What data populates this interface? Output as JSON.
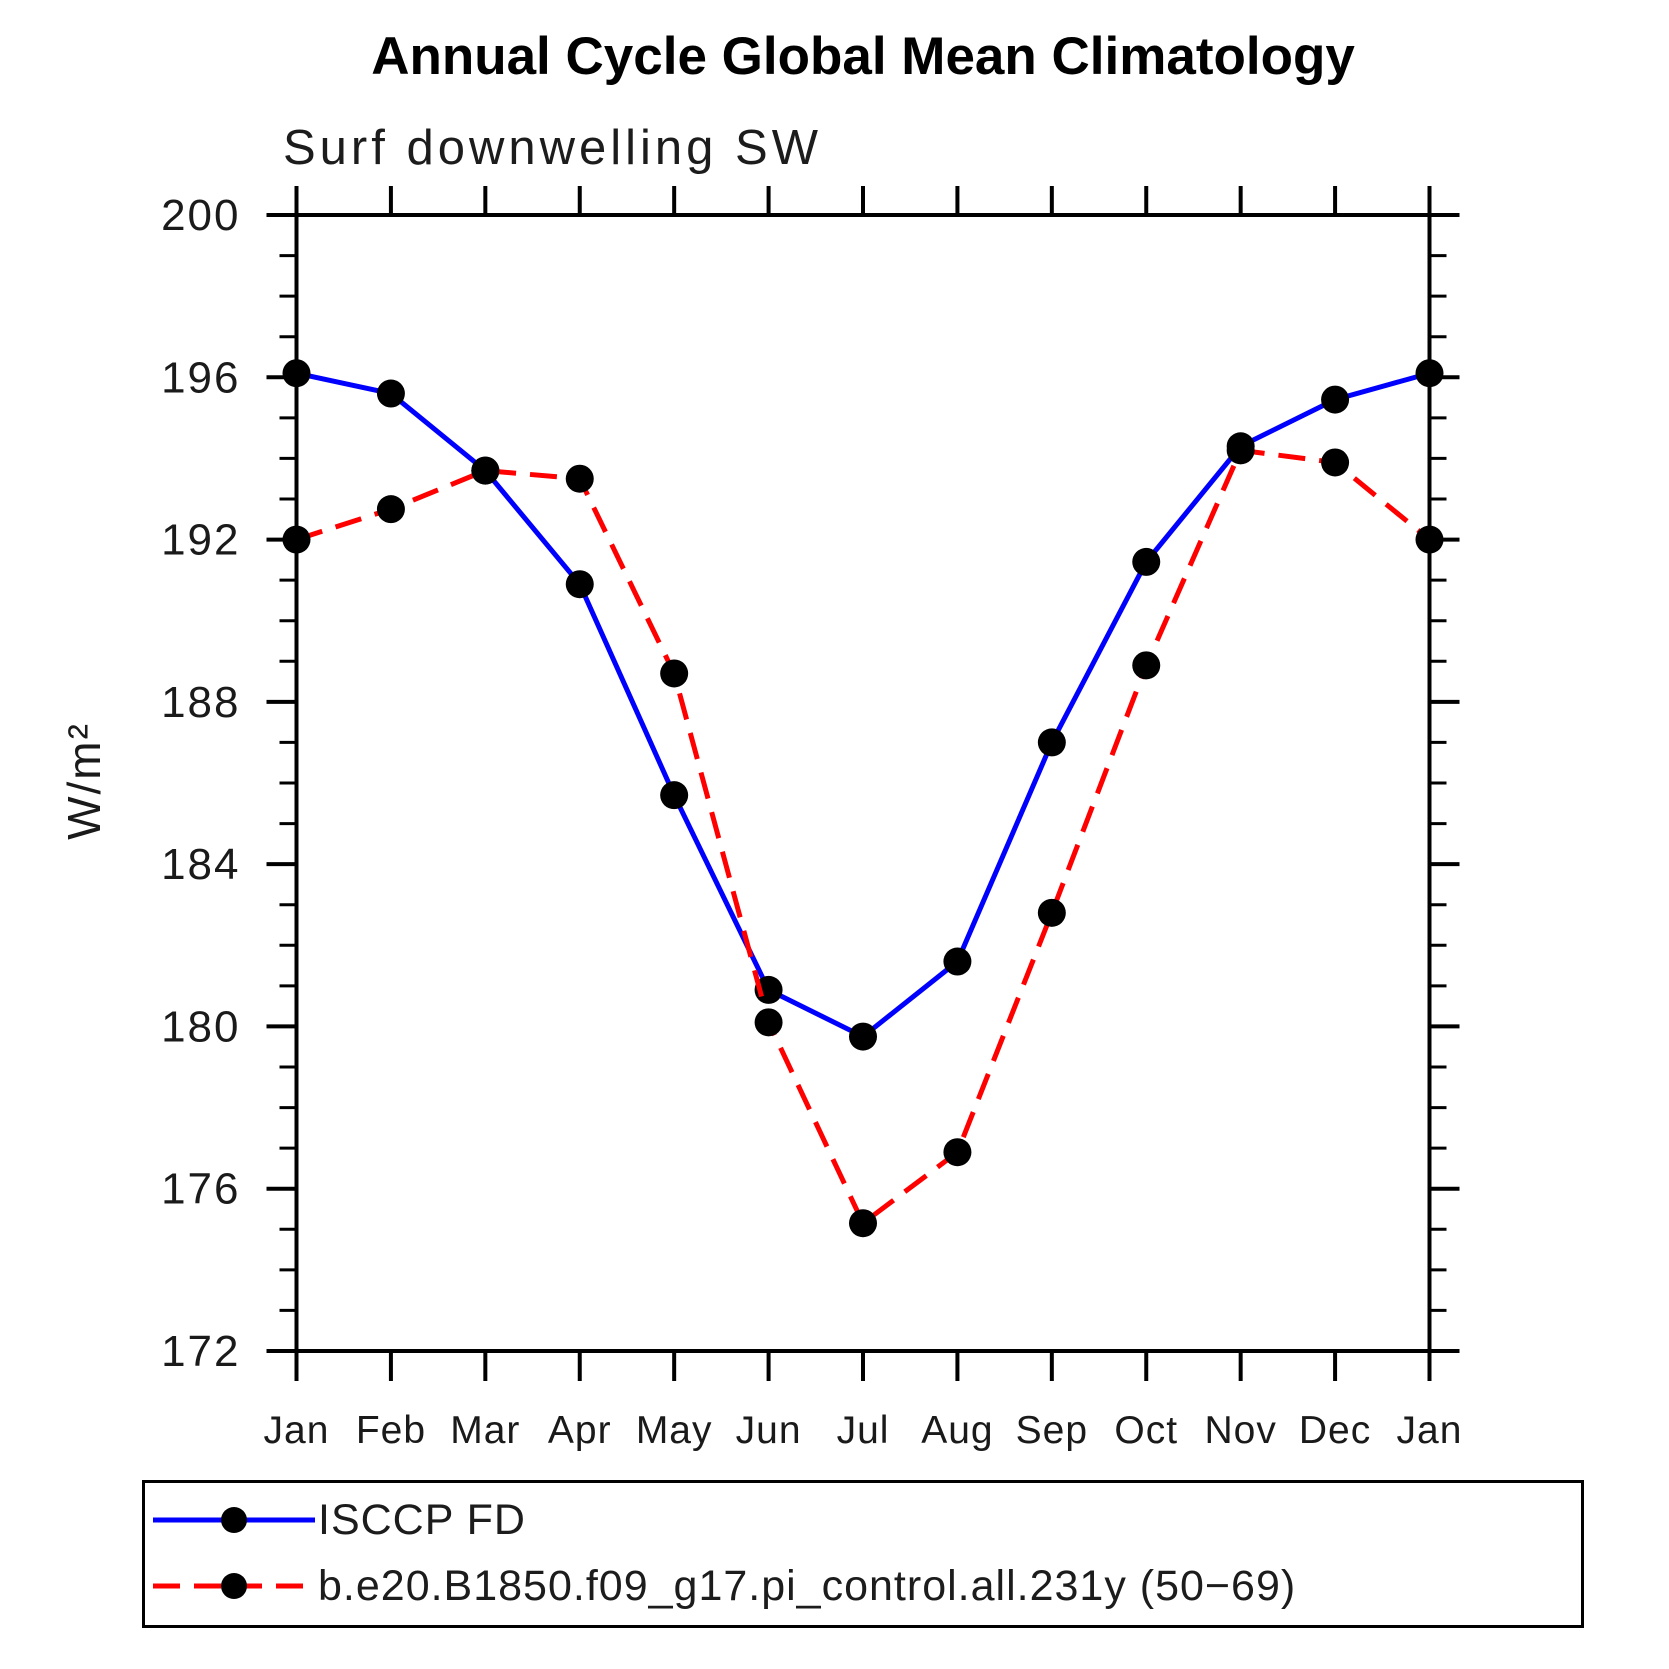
{
  "page": {
    "background": "#ffffff",
    "text_color": "#000000"
  },
  "chart_data": {
    "type": "line",
    "title": "Annual Cycle Global Mean Climatology",
    "subtitle": "Surf downwelling SW",
    "xlabel": "",
    "ylabel": "W/m²",
    "categories": [
      "Jan",
      "Feb",
      "Mar",
      "Apr",
      "May",
      "Jun",
      "Jul",
      "Aug",
      "Sep",
      "Oct",
      "Nov",
      "Dec",
      "Jan"
    ],
    "series": [
      {
        "name": "ISCCP FD",
        "line_color": "#0000ff",
        "line_style": "solid",
        "marker": "circle",
        "marker_color": "#000000",
        "values": [
          196.1,
          195.6,
          193.7,
          190.9,
          185.7,
          180.9,
          179.75,
          181.6,
          187.0,
          191.45,
          194.3,
          195.45,
          196.1
        ]
      },
      {
        "name": "b.e20.B1850.f09_g17.pi_control.all.231y (50−69)",
        "line_color": "#ff0000",
        "line_style": "dashed",
        "marker": "circle",
        "marker_color": "#000000",
        "values": [
          192.0,
          192.75,
          193.7,
          193.5,
          188.7,
          180.1,
          175.15,
          176.9,
          182.8,
          188.9,
          194.2,
          193.9,
          192.0
        ]
      }
    ],
    "ylim": [
      172,
      200
    ],
    "ytick_major": [
      172,
      176,
      180,
      184,
      188,
      192,
      196,
      200
    ],
    "ytick_minor_step": 1,
    "grid": false,
    "legend_position": "bottom-left-box",
    "axis_color": "#000000"
  }
}
